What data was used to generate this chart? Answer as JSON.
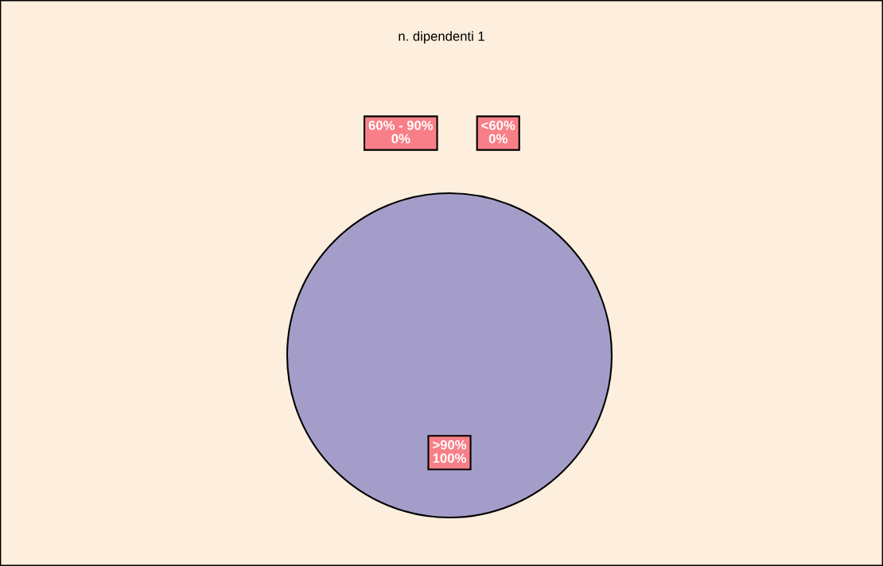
{
  "chart_data": {
    "type": "pie",
    "title": "n. dipendenti 1",
    "categories": [
      "<60%",
      "60% - 90%",
      ">90%"
    ],
    "values": [
      0,
      0,
      100
    ],
    "colors": [
      "#a59dc9",
      "#a59dc9",
      "#a59dc9"
    ],
    "value_labels": [
      "0%",
      "0%",
      "100%"
    ],
    "legend": false
  }
}
